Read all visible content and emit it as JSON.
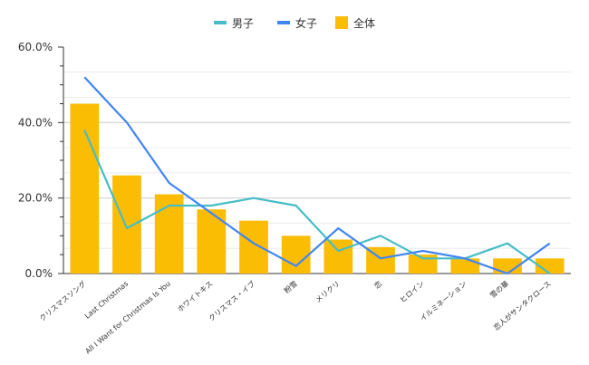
{
  "chart_data": {
    "type": "bar",
    "categories": [
      "クリスマスソング",
      "Last Christmas",
      "All I Want for Christmas Is You",
      "ホワイトキス",
      "クリスマス・イブ",
      "粉雪",
      "メリクリ",
      "恋",
      "ヒロイン",
      "イルミネーション",
      "雪の華",
      "恋人がサンタクロース"
    ],
    "series": [
      {
        "name": "全体",
        "kind": "bar",
        "color": "#FBBC04",
        "values": [
          45,
          26,
          21,
          17,
          14,
          10,
          9,
          7,
          5,
          4,
          4,
          4
        ]
      },
      {
        "name": "男子",
        "kind": "line",
        "color": "#46BDC6",
        "values": [
          38,
          12,
          18,
          18,
          20,
          18,
          6,
          10,
          4,
          4,
          8,
          0
        ]
      },
      {
        "name": "女子",
        "kind": "line",
        "color": "#4285F4",
        "values": [
          52,
          40,
          24,
          16,
          8,
          2,
          12,
          4,
          6,
          4,
          0,
          8
        ]
      }
    ],
    "legend_order": [
      "男子",
      "女子",
      "全体"
    ],
    "y_ticks": [
      "0.0%",
      "20.0%",
      "40.0%",
      "60.0%"
    ],
    "ylim": [
      0,
      60
    ],
    "grid": true,
    "legend_position": "top-center",
    "xlabel": "",
    "ylabel": ""
  }
}
